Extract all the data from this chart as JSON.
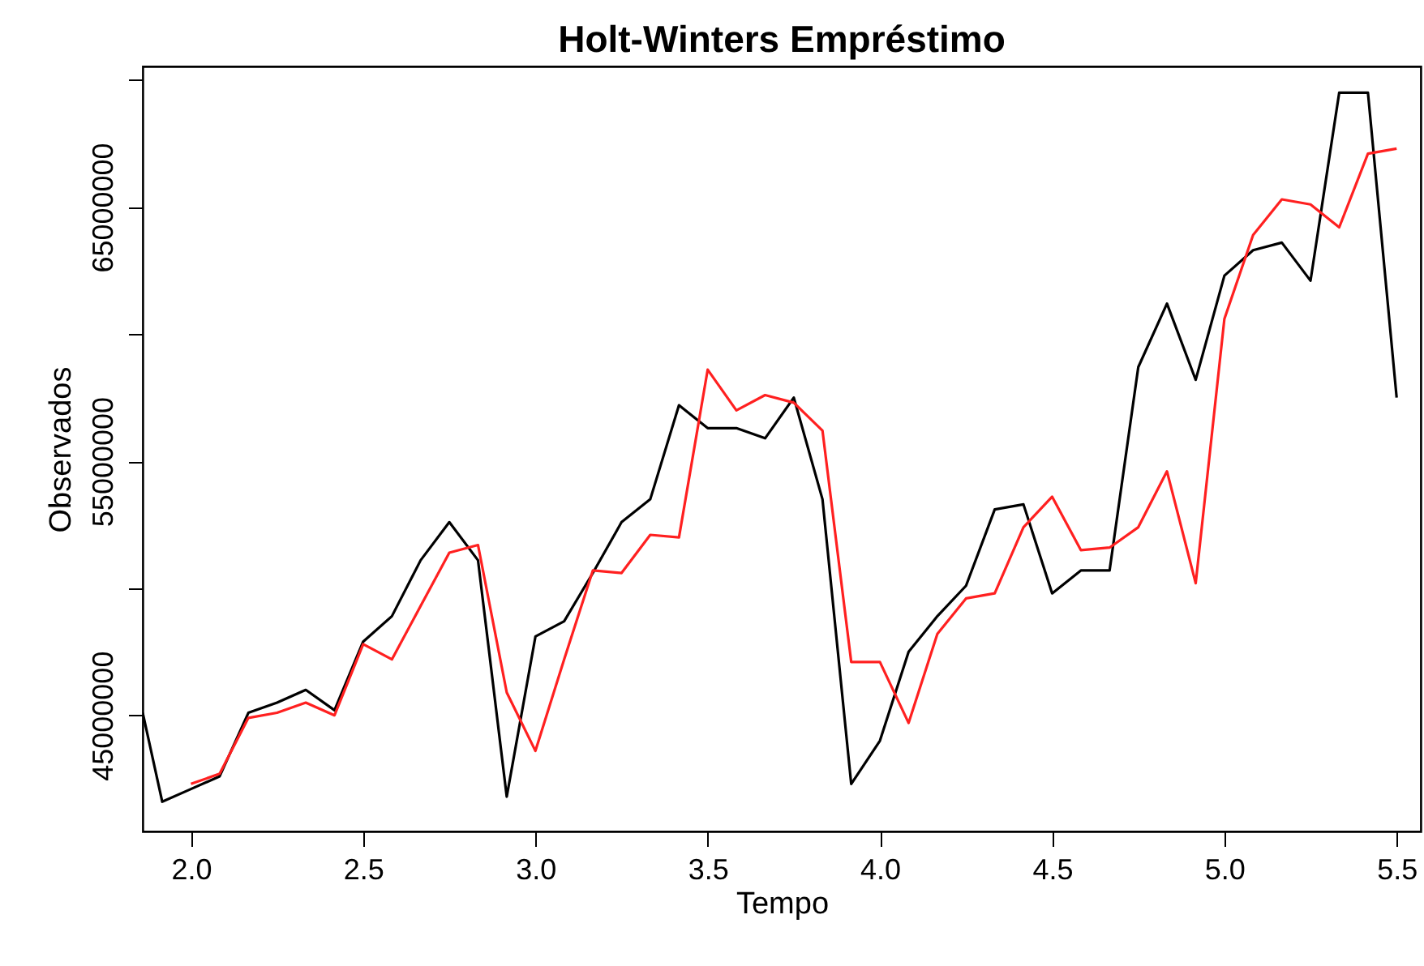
{
  "chart_data": {
    "type": "line",
    "title": "Holt-Winters Empréstimo",
    "xlabel": "Tempo",
    "ylabel": "Observados",
    "xlim": [
      1.86,
      5.57
    ],
    "ylim": [
      40430000,
      70530000
    ],
    "xticks": [
      {
        "value": 2,
        "label": "2.0"
      },
      {
        "value": 2.5,
        "label": "2.5"
      },
      {
        "value": 3,
        "label": "3.0"
      },
      {
        "value": 3.5,
        "label": "3.5"
      },
      {
        "value": 4,
        "label": "4.0"
      },
      {
        "value": 4.5,
        "label": "4.5"
      },
      {
        "value": 5,
        "label": "5.0"
      },
      {
        "value": 5.5,
        "label": "5.5"
      }
    ],
    "yticks": [
      45000000,
      {
        "value": 50000000,
        "label": null
      },
      55000000,
      {
        "value": 60000000,
        "label": null
      },
      65000000,
      {
        "value": 70000000,
        "label": null
      }
    ],
    "grid": false,
    "series": [
      {
        "color": "#000000",
        "x": [
          1.86,
          1.9167,
          2.0,
          2.0833,
          2.1667,
          2.25,
          2.3333,
          2.4167,
          2.5,
          2.5833,
          2.6667,
          2.75,
          2.8333,
          2.9167,
          3.0,
          3.0833,
          3.1667,
          3.25,
          3.3333,
          3.4167,
          3.5,
          3.5833,
          3.6667,
          3.75,
          3.8333,
          3.9167,
          4.0,
          4.0833,
          4.1667,
          4.25,
          4.3333,
          4.4167,
          4.5,
          4.5833,
          4.6667,
          4.75,
          4.8333,
          4.9167,
          5.0,
          5.0833,
          5.1667,
          5.25,
          5.3333,
          5.4167,
          5.5
        ],
        "values": [
          45100000,
          41600000,
          42100000,
          42600000,
          45100000,
          45500000,
          46000000,
          45200000,
          47900000,
          48900000,
          51100000,
          52600000,
          51100000,
          41800000,
          48100000,
          48700000,
          50600000,
          52600000,
          53500000,
          57200000,
          56300000,
          56300000,
          55900000,
          57500000,
          53500000,
          42300000,
          44000000,
          47500000,
          48900000,
          50100000,
          53100000,
          53300000,
          49800000,
          50700000,
          50700000,
          58700000,
          61200000,
          58200000,
          62300000,
          63300000,
          63600000,
          62100000,
          69500000,
          69500000,
          57500000
        ]
      },
      {
        "color": "#ff2020",
        "x": [
          2.0,
          2.0833,
          2.1667,
          2.25,
          2.3333,
          2.4167,
          2.5,
          2.5833,
          2.6667,
          2.75,
          2.8333,
          2.9167,
          3.0,
          3.0833,
          3.1667,
          3.25,
          3.3333,
          3.4167,
          3.5,
          3.5833,
          3.6667,
          3.75,
          3.8333,
          3.9167,
          4.0,
          4.0833,
          4.1667,
          4.25,
          4.3333,
          4.4167,
          4.5,
          4.5833,
          4.6667,
          4.75,
          4.8333,
          4.9167,
          5.0,
          5.0833,
          5.1667,
          5.25,
          5.3333,
          5.4167,
          5.5
        ],
        "values": [
          42300000,
          42700000,
          44900000,
          45100000,
          45500000,
          45000000,
          47800000,
          47200000,
          49300000,
          51400000,
          51700000,
          45900000,
          43600000,
          47200000,
          50700000,
          50600000,
          52100000,
          52000000,
          58600000,
          57000000,
          57600000,
          57300000,
          56200000,
          47100000,
          47100000,
          44700000,
          48200000,
          49600000,
          49800000,
          52400000,
          53600000,
          51500000,
          51600000,
          52400000,
          54600000,
          50200000,
          60600000,
          63900000,
          65300000,
          65100000,
          64200000,
          67100000,
          67300000
        ]
      }
    ]
  }
}
